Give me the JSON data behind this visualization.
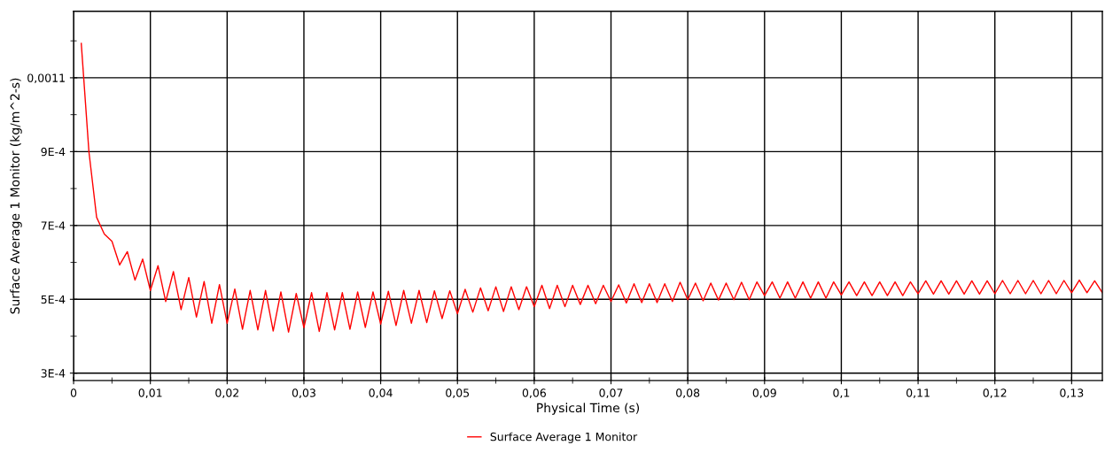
{
  "chart_data": {
    "type": "line",
    "xlabel": "Physical Time (s)",
    "ylabel": "Surface Average 1 Monitor (kg/m^2-s)",
    "x": [
      0.001,
      0.002,
      0.003,
      0.004,
      0.005,
      0.006,
      0.007,
      0.008,
      0.009,
      0.01,
      0.011,
      0.012,
      0.013,
      0.014,
      0.015,
      0.016,
      0.017,
      0.018,
      0.019,
      0.02,
      0.021,
      0.022,
      0.023,
      0.024,
      0.025,
      0.026,
      0.027,
      0.028,
      0.029,
      0.03,
      0.031,
      0.032,
      0.033,
      0.034,
      0.035,
      0.036,
      0.037,
      0.038,
      0.039,
      0.04,
      0.041,
      0.042,
      0.043,
      0.044,
      0.045,
      0.046,
      0.047,
      0.048,
      0.049,
      0.05,
      0.051,
      0.052,
      0.053,
      0.054,
      0.055,
      0.056,
      0.057,
      0.058,
      0.059,
      0.06,
      0.061,
      0.062,
      0.063,
      0.064,
      0.065,
      0.066,
      0.067,
      0.068,
      0.069,
      0.07,
      0.071,
      0.072,
      0.073,
      0.074,
      0.075,
      0.076,
      0.077,
      0.078,
      0.079,
      0.08,
      0.081,
      0.082,
      0.083,
      0.084,
      0.085,
      0.086,
      0.087,
      0.088,
      0.089,
      0.09,
      0.091,
      0.092,
      0.093,
      0.094,
      0.095,
      0.096,
      0.097,
      0.098,
      0.099,
      0.1,
      0.101,
      0.102,
      0.103,
      0.104,
      0.105,
      0.106,
      0.107,
      0.108,
      0.109,
      0.11,
      0.111,
      0.112,
      0.113,
      0.114,
      0.115,
      0.116,
      0.117,
      0.118,
      0.119,
      0.12,
      0.121,
      0.122,
      0.123,
      0.124,
      0.125,
      0.126,
      0.127,
      0.128,
      0.129,
      0.13,
      0.131,
      0.132,
      0.133,
      0.134
    ],
    "series": [
      {
        "name": "Surface Average 1 Monitor",
        "color": "#ff0000",
        "values": [
          0.001193,
          0.000899,
          0.000722,
          0.000677,
          0.000657,
          0.000593,
          0.000629,
          0.000552,
          0.000609,
          0.000524,
          0.000591,
          0.000494,
          0.000575,
          0.000472,
          0.000559,
          0.000452,
          0.000548,
          0.000435,
          0.00054,
          0.000435,
          0.000528,
          0.000419,
          0.000524,
          0.000417,
          0.000524,
          0.000414,
          0.00052,
          0.000411,
          0.000516,
          0.000423,
          0.000518,
          0.000413,
          0.000518,
          0.000417,
          0.000518,
          0.000419,
          0.00052,
          0.000424,
          0.00052,
          0.000433,
          0.000522,
          0.000429,
          0.000524,
          0.000435,
          0.000524,
          0.000437,
          0.000523,
          0.000448,
          0.000523,
          0.000461,
          0.000527,
          0.000465,
          0.000531,
          0.000469,
          0.000534,
          0.000467,
          0.000534,
          0.000472,
          0.000534,
          0.00048,
          0.000538,
          0.000475,
          0.000538,
          0.00048,
          0.000538,
          0.000486,
          0.000538,
          0.000488,
          0.000538,
          0.000494,
          0.000539,
          0.00049,
          0.000542,
          0.000491,
          0.000542,
          0.000491,
          0.000542,
          0.000494,
          0.000546,
          0.000499,
          0.000544,
          0.000496,
          0.000544,
          0.000498,
          0.000544,
          0.000499,
          0.000546,
          0.000499,
          0.000547,
          0.00051,
          0.000547,
          0.000503,
          0.000547,
          0.000503,
          0.000547,
          0.000503,
          0.000547,
          0.000503,
          0.000547,
          0.000512,
          0.000547,
          0.00051,
          0.000547,
          0.00051,
          0.000547,
          0.00051,
          0.000547,
          0.00051,
          0.000547,
          0.000515,
          0.00055,
          0.000514,
          0.00055,
          0.000514,
          0.00055,
          0.000514,
          0.00055,
          0.000514,
          0.00055,
          0.000515,
          0.000551,
          0.000515,
          0.000551,
          0.000515,
          0.000551,
          0.000515,
          0.000551,
          0.000515,
          0.000551,
          0.000518,
          0.000552,
          0.000518,
          0.00055,
          0.000518
        ]
      }
    ],
    "xlim": [
      0,
      0.134
    ],
    "xticks": [
      0,
      {
        "value": 0.005,
        "label": null
      },
      {
        "value": 0.01,
        "label": "0,01"
      },
      {
        "value": 0.015,
        "label": null
      },
      {
        "value": 0.02,
        "label": "0,02"
      },
      {
        "value": 0.025,
        "label": null
      },
      {
        "value": 0.03,
        "label": "0,03"
      },
      {
        "value": 0.035,
        "label": null
      },
      {
        "value": 0.04,
        "label": "0,04"
      },
      {
        "value": 0.045,
        "label": null
      },
      {
        "value": 0.05,
        "label": "0,05"
      },
      {
        "value": 0.055,
        "label": null
      },
      {
        "value": 0.06,
        "label": "0,06"
      },
      {
        "value": 0.065,
        "label": null
      },
      {
        "value": 0.07,
        "label": "0,07"
      },
      {
        "value": 0.075,
        "label": null
      },
      {
        "value": 0.08,
        "label": "0,08"
      },
      {
        "value": 0.085,
        "label": null
      },
      {
        "value": 0.09,
        "label": "0,09"
      },
      {
        "value": 0.095,
        "label": null
      },
      {
        "value": 0.1,
        "label": "0,1"
      },
      {
        "value": 0.105,
        "label": null
      },
      {
        "value": 0.11,
        "label": "0,11"
      },
      {
        "value": 0.115,
        "label": null
      },
      {
        "value": 0.12,
        "label": "0,12"
      },
      {
        "value": 0.125,
        "label": null
      },
      {
        "value": 0.13,
        "label": "0,13"
      }
    ],
    "ylim": [
      0.00028,
      0.00128
    ],
    "yticks": [
      {
        "value": 0.0003,
        "label": "3E-4"
      },
      {
        "value": 0.0004,
        "label": null
      },
      {
        "value": 0.0005,
        "label": "5E-4"
      },
      {
        "value": 0.0006,
        "label": null
      },
      {
        "value": 0.0007,
        "label": "7E-4"
      },
      {
        "value": 0.0008,
        "label": null
      },
      {
        "value": 0.0009,
        "label": "9E-4"
      },
      {
        "value": 0.001,
        "label": null
      },
      {
        "value": 0.0011,
        "label": "0,0011"
      },
      {
        "value": 0.0012,
        "label": null
      }
    ],
    "grid": true,
    "legend": "bottom",
    "marker": "none",
    "line_style": "solid"
  }
}
